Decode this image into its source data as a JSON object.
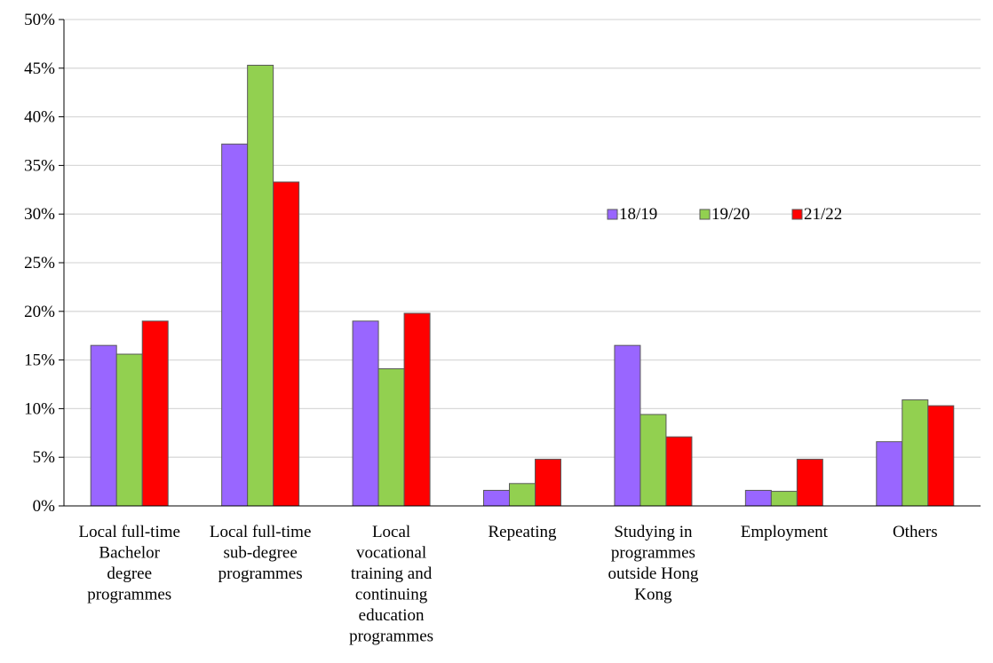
{
  "chart_data": {
    "type": "bar",
    "title": "",
    "xlabel": "",
    "ylabel": "",
    "ylim": [
      0,
      50
    ],
    "yticks": [
      "0%",
      "5%",
      "10%",
      "15%",
      "20%",
      "25%",
      "30%",
      "35%",
      "40%",
      "45%",
      "50%"
    ],
    "grid": true,
    "legend_position": "right-middle",
    "categories": [
      [
        "Local full-time",
        "Bachelor",
        "degree",
        "programmes"
      ],
      [
        "Local full-time",
        "sub-degree",
        "programmes"
      ],
      [
        "Local",
        "vocational",
        "training and",
        "continuing",
        "education",
        "programmes"
      ],
      [
        "Repeating"
      ],
      [
        "Studying in",
        "programmes",
        "outside Hong",
        "Kong"
      ],
      [
        "Employment"
      ],
      [
        "Others"
      ]
    ],
    "series": [
      {
        "name": "18/19",
        "color": "#9966FF",
        "values": [
          16.5,
          37.2,
          19.0,
          1.6,
          16.5,
          1.6,
          6.6
        ]
      },
      {
        "name": "19/20",
        "color": "#92D050",
        "values": [
          15.6,
          45.3,
          14.1,
          2.3,
          9.4,
          1.5,
          10.9
        ]
      },
      {
        "name": "21/22",
        "color": "#FF0000",
        "values": [
          19.0,
          33.3,
          19.8,
          4.8,
          7.1,
          4.8,
          10.3
        ]
      }
    ]
  }
}
